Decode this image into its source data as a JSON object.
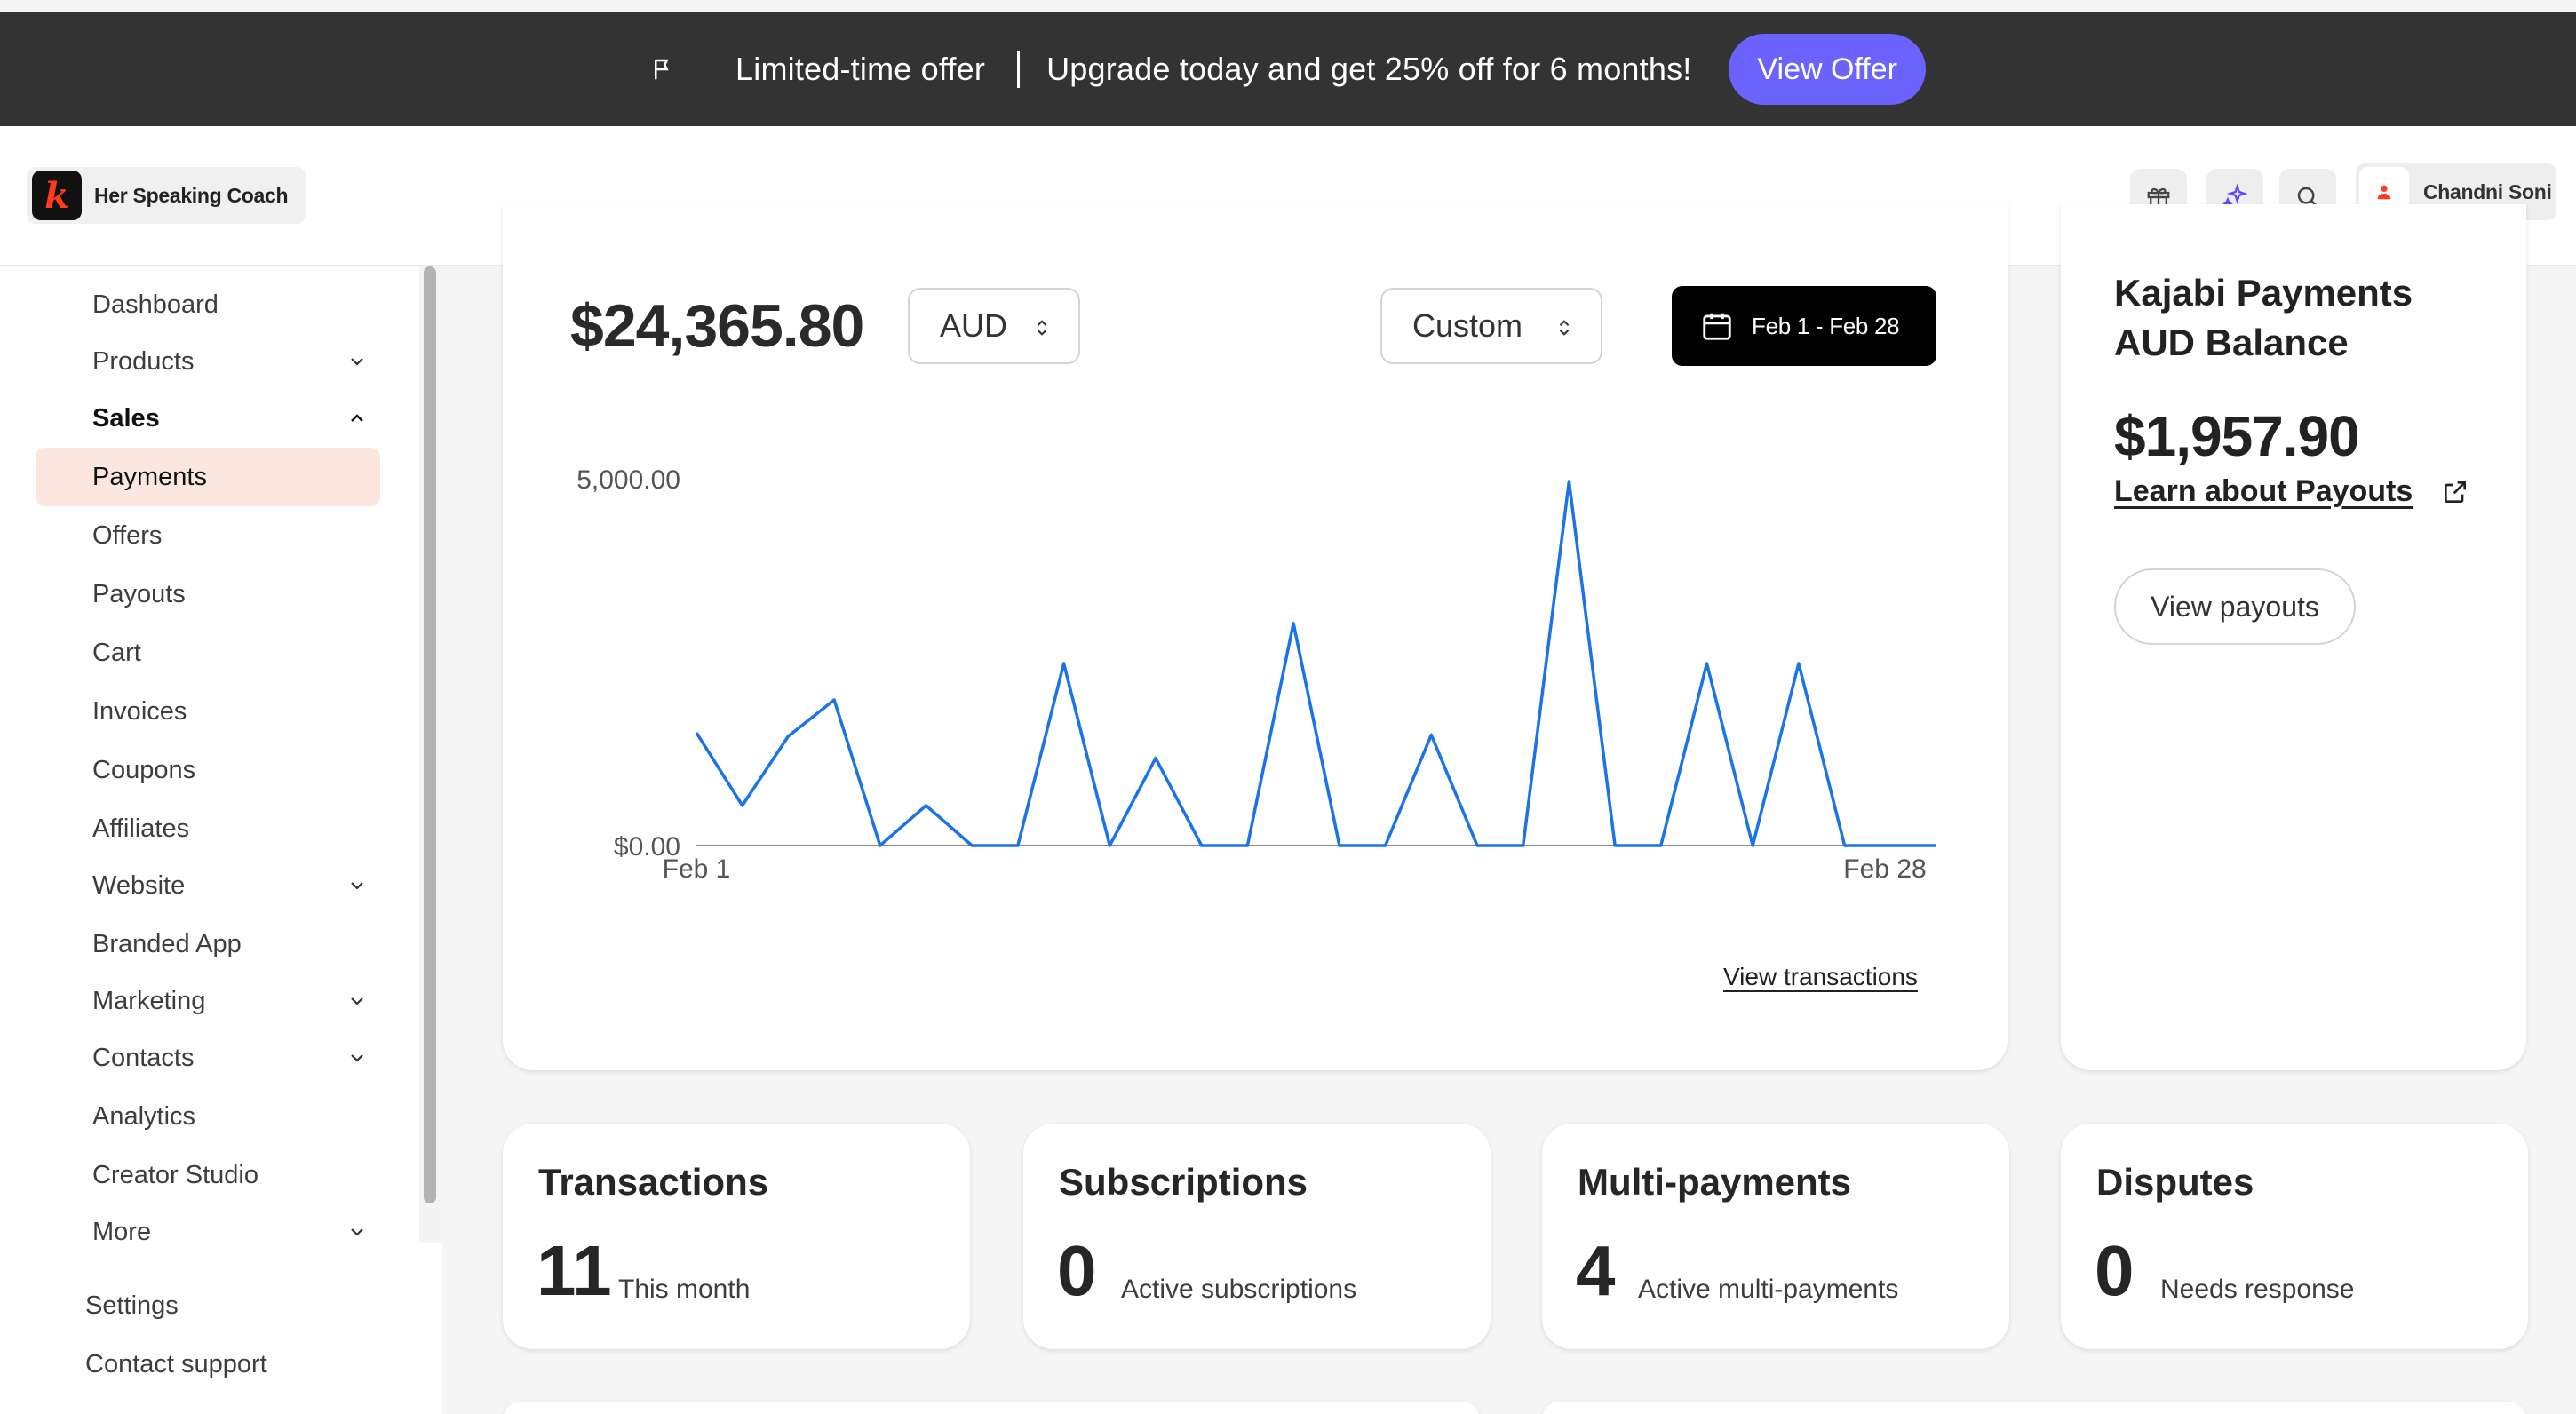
{
  "promo": {
    "icon": "flag-icon",
    "title": "Limited-time offer",
    "message": "Upgrade today and get 25% off for 6 months!",
    "button": "View Offer",
    "button_color": "#6c63ff"
  },
  "header": {
    "brand_name": "Her Speaking Coach",
    "brand_logo_letter": "k",
    "icons": [
      "gift-icon",
      "sparkle-icon",
      "search-icon"
    ],
    "user_name": "Chandni Soni"
  },
  "sidebar": {
    "items": [
      {
        "label": "Dashboard"
      },
      {
        "label": "Products",
        "chevron": "down"
      },
      {
        "label": "Sales",
        "chevron": "up"
      },
      {
        "label": "Payments"
      },
      {
        "label": "Offers"
      },
      {
        "label": "Payouts"
      },
      {
        "label": "Cart"
      },
      {
        "label": "Invoices"
      },
      {
        "label": "Coupons"
      },
      {
        "label": "Affiliates"
      },
      {
        "label": "Website",
        "chevron": "down"
      },
      {
        "label": "Branded App"
      },
      {
        "label": "Marketing",
        "chevron": "down"
      },
      {
        "label": "Contacts",
        "chevron": "down"
      },
      {
        "label": "Analytics"
      },
      {
        "label": "Creator Studio"
      },
      {
        "label": "More",
        "chevron": "down"
      }
    ],
    "footer": [
      "Settings",
      "Contact support"
    ]
  },
  "revenue": {
    "amount": "$24,365.80",
    "currency": "AUD",
    "range_mode": "Custom",
    "date_range": "Feb 1 - Feb 28",
    "view_transactions": "View transactions"
  },
  "chart_data": {
    "type": "line",
    "x_labels": [
      "Feb 1",
      "Feb 28"
    ],
    "y_tick_labels": [
      "5,000.00",
      "$0.00"
    ],
    "ylim": [
      0,
      5000
    ],
    "line_color": "#1a73e8",
    "x": [
      1,
      2,
      3,
      4,
      5,
      6,
      7,
      8,
      9,
      10,
      11,
      12,
      13,
      14,
      15,
      16,
      17,
      18,
      19,
      20,
      21,
      22,
      23,
      24,
      25,
      26,
      27,
      28
    ],
    "values": [
      1550,
      550,
      1500,
      2000,
      0,
      550,
      0,
      0,
      2500,
      0,
      1200,
      0,
      0,
      3050,
      0,
      0,
      1520,
      0,
      0,
      5000,
      0,
      0,
      2500,
      0,
      2500,
      0,
      0,
      0
    ]
  },
  "balance": {
    "title": "Kajabi Payments AUD Balance",
    "amount": "$1,957.90",
    "link": "Learn about Payouts",
    "button": "View payouts"
  },
  "stats": [
    {
      "title": "Transactions",
      "number": "11",
      "subtitle": "This month"
    },
    {
      "title": "Subscriptions",
      "number": "0",
      "subtitle": "Active subscriptions"
    },
    {
      "title": "Multi-payments",
      "number": "4",
      "subtitle": "Active multi-payments"
    },
    {
      "title": "Disputes",
      "number": "0",
      "subtitle": "Needs response"
    }
  ]
}
